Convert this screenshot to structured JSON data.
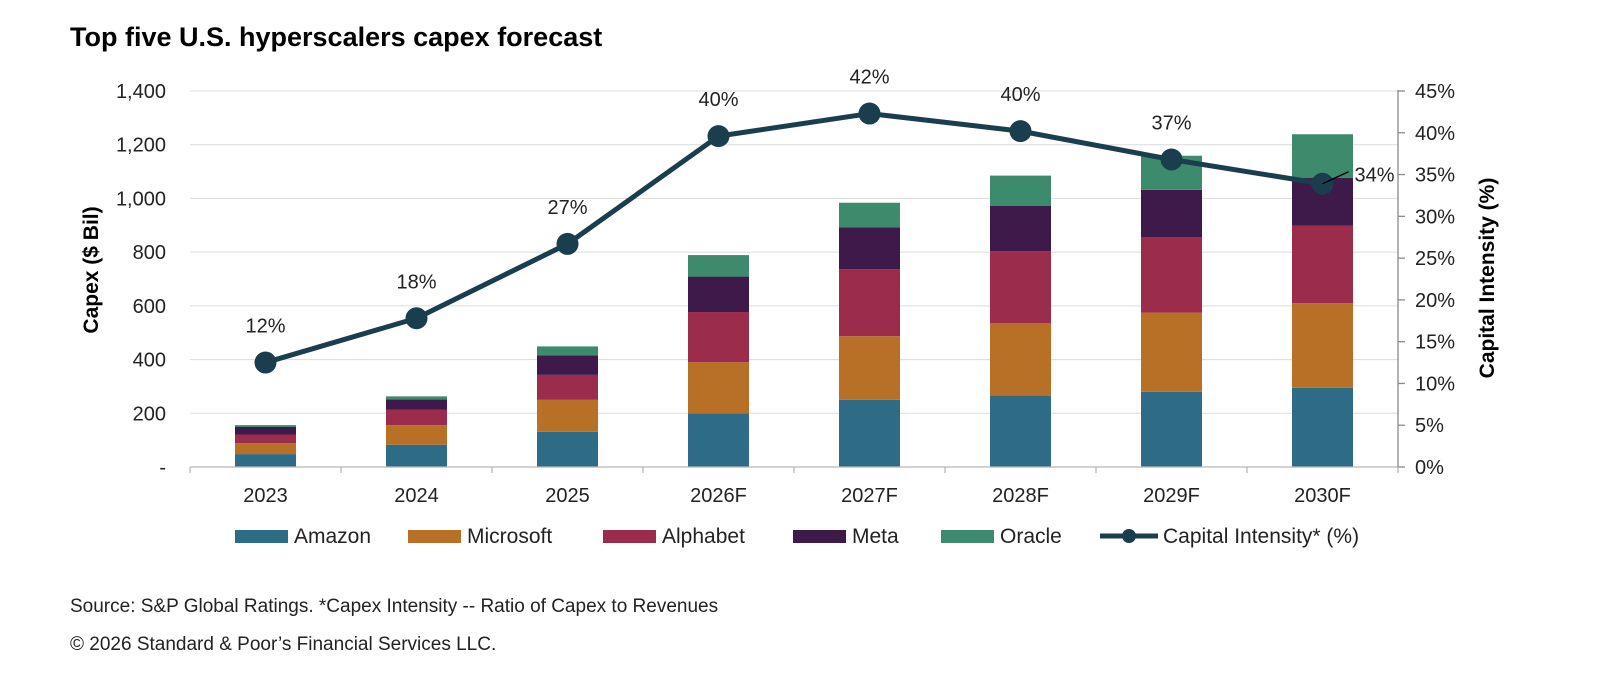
{
  "title": "Top five U.S. hyperscalers capex forecast",
  "footnotes": {
    "source": "Source: S&P Global Ratings. *Capex Intensity -- Ratio of  Capex  to Revenues",
    "copyright": "© 2026 Standard & Poor’s Financial Services LLC."
  },
  "chart_data": {
    "type": "bar",
    "stacked": true,
    "categories": [
      "2023",
      "2024",
      "2025",
      "2026F",
      "2027F",
      "2028F",
      "2029F",
      "2030F"
    ],
    "ylabel": "Capex  ($ Bil)",
    "y2label": "Capital Intensity (%)",
    "ylim": [
      0,
      1400
    ],
    "y2lim": [
      0,
      45
    ],
    "y_ticks": [
      "-",
      "200",
      "400",
      "600",
      "800",
      "1,000",
      "1,200",
      "1,400"
    ],
    "y2_ticks": [
      "0%",
      "5%",
      "10%",
      "15%",
      "20%",
      "25%",
      "30%",
      "35%",
      "40%",
      "45%"
    ],
    "grid": true,
    "legend_position": "bottom",
    "series": [
      {
        "name": "Amazon",
        "color": "#2e6b87",
        "values": [
          48,
          83,
          131,
          200,
          250,
          267,
          280,
          295
        ]
      },
      {
        "name": "Microsoft",
        "color": "#b87027",
        "values": [
          41,
          73,
          119,
          190,
          237,
          268,
          295,
          315
        ]
      },
      {
        "name": "Alphabet",
        "color": "#9c2c4b",
        "values": [
          32,
          58,
          93,
          187,
          250,
          268,
          280,
          288
        ]
      },
      {
        "name": "Meta",
        "color": "#3d1a4a",
        "values": [
          28,
          38,
          73,
          132,
          155,
          170,
          177,
          178
        ]
      },
      {
        "name": "Oracle",
        "color": "#3e8a6c",
        "values": [
          7,
          11,
          33,
          80,
          92,
          112,
          127,
          163
        ]
      }
    ],
    "line_series": {
      "name": "Capital Intensity* (%)",
      "color": "#1b3e4e",
      "values": [
        12.5,
        17.8,
        26.7,
        39.6,
        42.3,
        40.2,
        36.8,
        33.9
      ],
      "labels": [
        "12%",
        "18%",
        "27%",
        "40%",
        "42%",
        "40%",
        "37%",
        "34%"
      ]
    }
  }
}
